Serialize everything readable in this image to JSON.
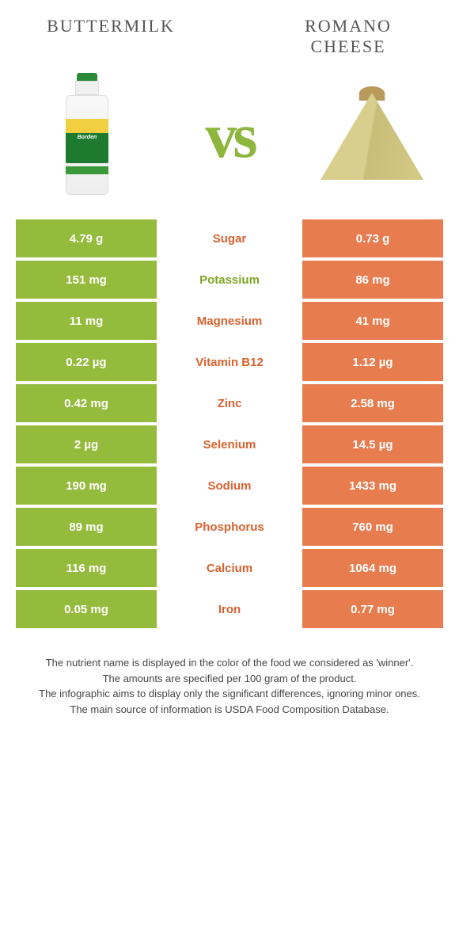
{
  "colors": {
    "left": "#95bb3d",
    "right": "#e77c4f",
    "left_text": "#7ba621",
    "right_text": "#d8622f",
    "white": "#ffffff"
  },
  "food_left": {
    "title": "Buttermilk"
  },
  "food_right": {
    "title": "Romano cheese"
  },
  "vs_label": "vs",
  "rows": [
    {
      "label": "Sugar",
      "left": "4.79 g",
      "right": "0.73 g",
      "winner": "right"
    },
    {
      "label": "Potassium",
      "left": "151 mg",
      "right": "86 mg",
      "winner": "left"
    },
    {
      "label": "Magnesium",
      "left": "11 mg",
      "right": "41 mg",
      "winner": "right"
    },
    {
      "label": "Vitamin B12",
      "left": "0.22 µg",
      "right": "1.12 µg",
      "winner": "right"
    },
    {
      "label": "Zinc",
      "left": "0.42 mg",
      "right": "2.58 mg",
      "winner": "right"
    },
    {
      "label": "Selenium",
      "left": "2 µg",
      "right": "14.5 µg",
      "winner": "right"
    },
    {
      "label": "Sodium",
      "left": "190 mg",
      "right": "1433 mg",
      "winner": "right"
    },
    {
      "label": "Phosphorus",
      "left": "89 mg",
      "right": "760 mg",
      "winner": "right"
    },
    {
      "label": "Calcium",
      "left": "116 mg",
      "right": "1064 mg",
      "winner": "right"
    },
    {
      "label": "Iron",
      "left": "0.05 mg",
      "right": "0.77 mg",
      "winner": "right"
    }
  ],
  "footer": {
    "line1": "The nutrient name is displayed in the color of the food we considered as 'winner'.",
    "line2": "The amounts are specified per 100 gram of the product.",
    "line3": "The infographic aims to display only the significant differences, ignoring minor ones.",
    "line4": "The main source of information is USDA Food Composition Database."
  }
}
